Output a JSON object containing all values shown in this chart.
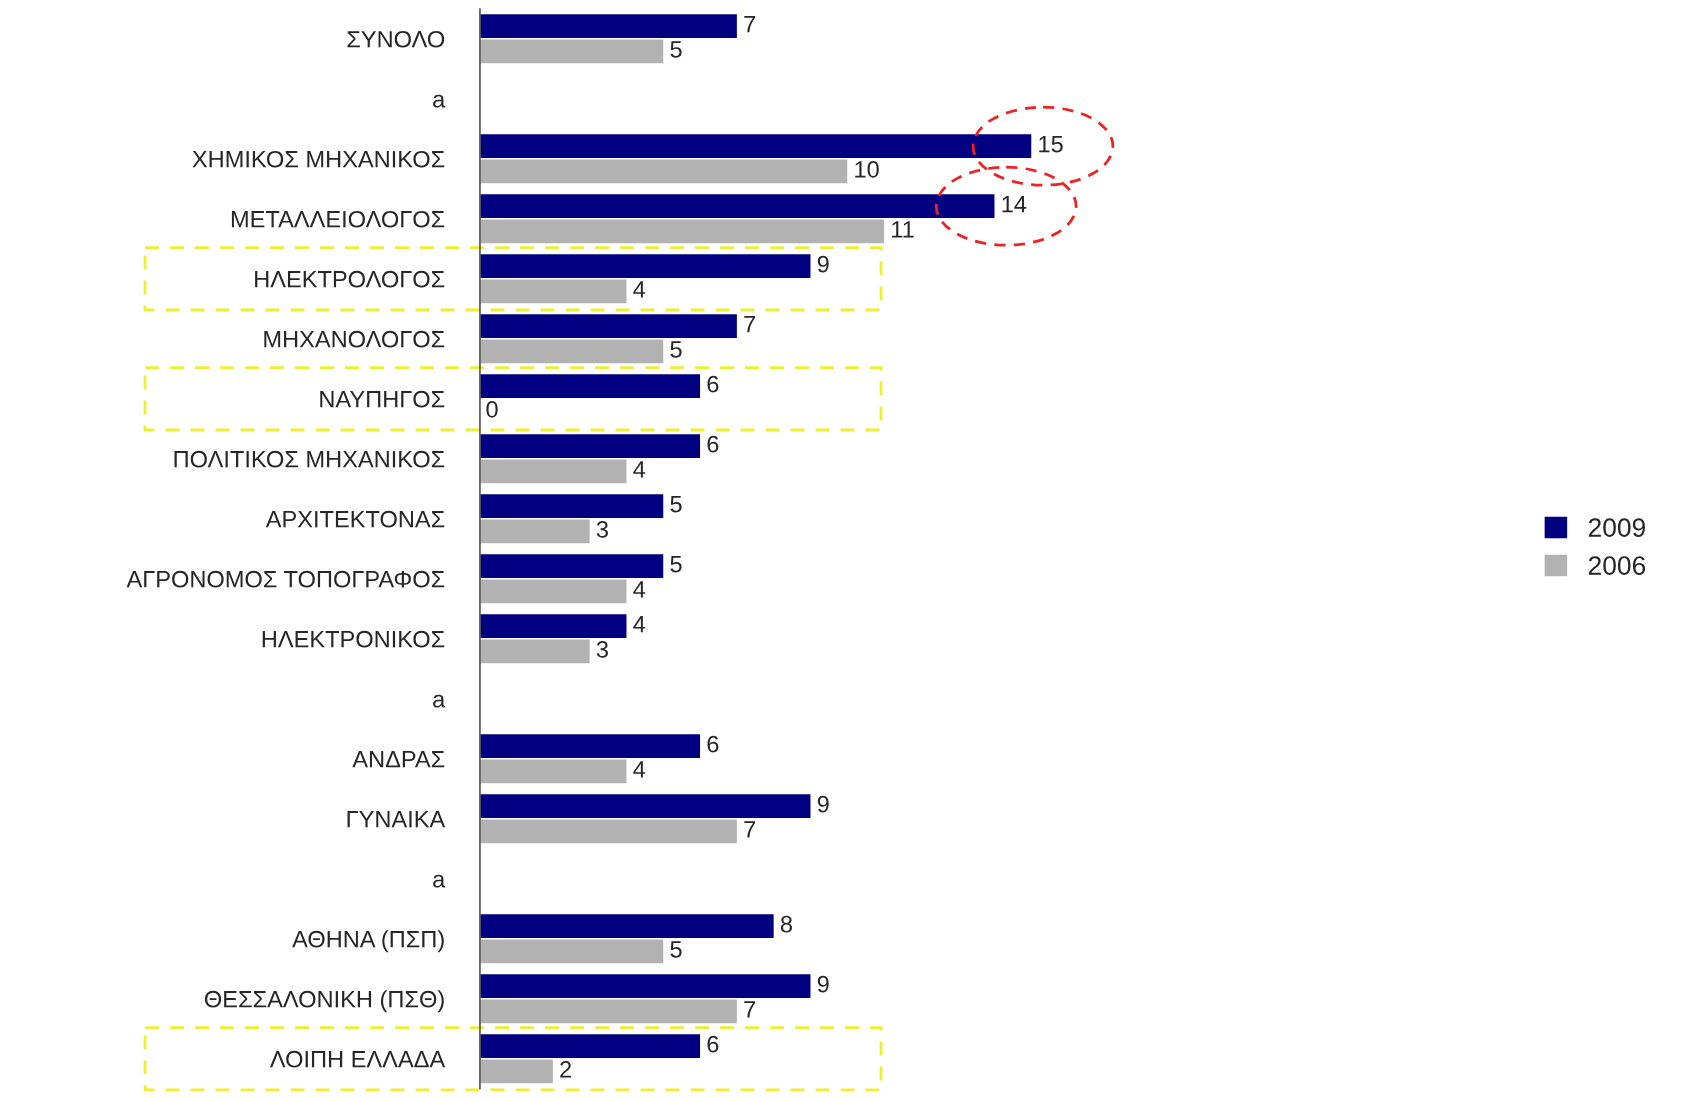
{
  "chart_data": {
    "type": "bar",
    "orientation": "horizontal",
    "data_labels": true,
    "legend": "right",
    "grid": false,
    "categories": [
      "ΣΥΝΟΛΟ",
      "a",
      "ΧΗΜΙΚΟΣ ΜΗΧΑΝΙΚΟΣ",
      "ΜΕΤΑΛΛΕΙΟΛΟΓΟΣ",
      "ΗΛΕΚΤΡΟΛΟΓΟΣ",
      "ΜΗΧΑΝΟΛΟΓΟΣ",
      "ΝΑΥΠΗΓΟΣ",
      "ΠΟΛΙΤΙΚΟΣ ΜΗΧΑΝΙΚΟΣ",
      "ΑΡΧΙΤΕΚΤΟΝΑΣ",
      "ΑΓΡΟΝΟΜΟΣ ΤΟΠΟΓΡΑΦΟΣ",
      "ΗΛΕΚΤΡΟΝΙΚΟΣ",
      "a",
      "ΑΝΔΡΑΣ",
      "ΓΥΝΑΙΚΑ",
      "a",
      "ΑΘΗΝΑ (ΠΣΠ)",
      "ΘΕΣΣΑΛΟΝΙΚΗ (ΠΣΘ)",
      "ΛΟΙΠΗ ΕΛΛΑΔΑ"
    ],
    "series": [
      {
        "name": "2009",
        "color": "#000080",
        "values": [
          7,
          null,
          15,
          14,
          9,
          7,
          6,
          6,
          5,
          5,
          4,
          null,
          6,
          9,
          null,
          8,
          9,
          6
        ]
      },
      {
        "name": "2006",
        "color": "#b2b2b2",
        "values": [
          5,
          null,
          10,
          11,
          4,
          5,
          0,
          4,
          3,
          4,
          3,
          null,
          4,
          7,
          null,
          5,
          7,
          2
        ]
      }
    ]
  }
}
